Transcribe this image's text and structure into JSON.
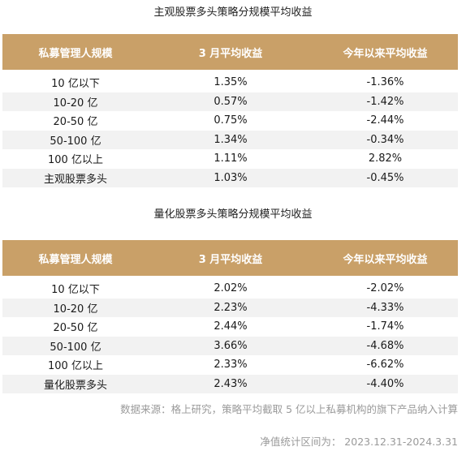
{
  "tables": [
    {
      "title": "主观股票多头策略分规模平均收益",
      "headers": [
        "私募管理人规模",
        "3 月平均收益",
        "今年以来平均收益"
      ],
      "rows": [
        [
          "10 亿以下",
          "1.35%",
          "-1.36%"
        ],
        [
          "10-20 亿",
          "0.57%",
          "-1.42%"
        ],
        [
          "20-50 亿",
          "0.75%",
          "-2.44%"
        ],
        [
          "50-100 亿",
          "1.34%",
          "-0.34%"
        ],
        [
          "100 亿以上",
          "1.11%",
          "2.82%"
        ],
        [
          "主观股票多头",
          "1.03%",
          "-0.45%"
        ]
      ]
    },
    {
      "title": "量化股票多头策略分规模平均收益",
      "headers": [
        "私募管理人规模",
        "3 月平均收益",
        "今年以来平均收益"
      ],
      "rows": [
        [
          "10 亿以下",
          "2.02%",
          "-2.02%"
        ],
        [
          "10-20 亿",
          "2.23%",
          "-4.33%"
        ],
        [
          "20-50 亿",
          "2.44%",
          "-1.74%"
        ],
        [
          "50-100 亿",
          "3.66%",
          "-4.68%"
        ],
        [
          "100 亿以上",
          "2.33%",
          "-6.62%"
        ],
        [
          "量化股票多头",
          "2.43%",
          "-4.40%"
        ]
      ]
    }
  ],
  "footer": {
    "source": "数据来源：格上研究，策略平均截取 5 亿以上私募机构的旗下产品纳入计算",
    "period": "净值统计区间为：  2023.12.31-2024.3.31"
  },
  "colors": {
    "header_bg": "#c9a068",
    "band_bg": "#f2f2f2",
    "footer_text": "#9a9a9a"
  }
}
